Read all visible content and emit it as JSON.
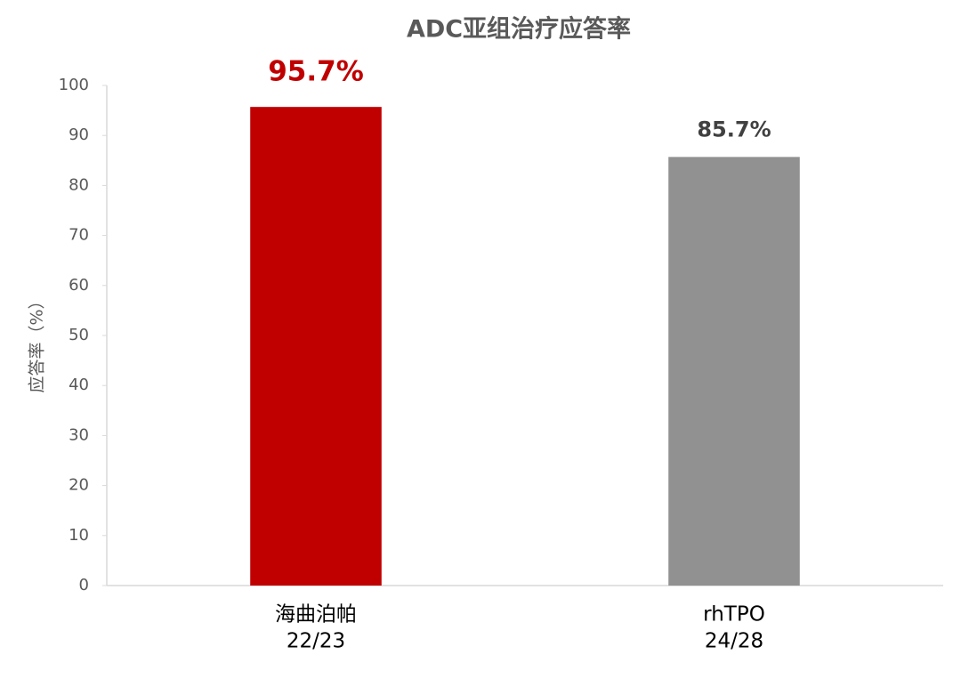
{
  "chart_data": {
    "type": "bar",
    "title": "ADC亚组治疗应答率",
    "y_label": "应答率（%）",
    "categories": [
      "海曲泊帕",
      "rhTPO"
    ],
    "category_notes": [
      "22/23",
      "24/28"
    ],
    "values": [
      95.7,
      85.7
    ],
    "value_labels": [
      "95.7%",
      "85.7%"
    ],
    "colors": [
      "#c00000",
      "#919191"
    ],
    "value_label_colors": [
      "#c00000",
      "#404040"
    ],
    "ylim": [
      0,
      100
    ],
    "yticks": [
      0,
      10,
      20,
      30,
      40,
      50,
      60,
      70,
      80,
      90,
      100
    ],
    "grid": false
  }
}
